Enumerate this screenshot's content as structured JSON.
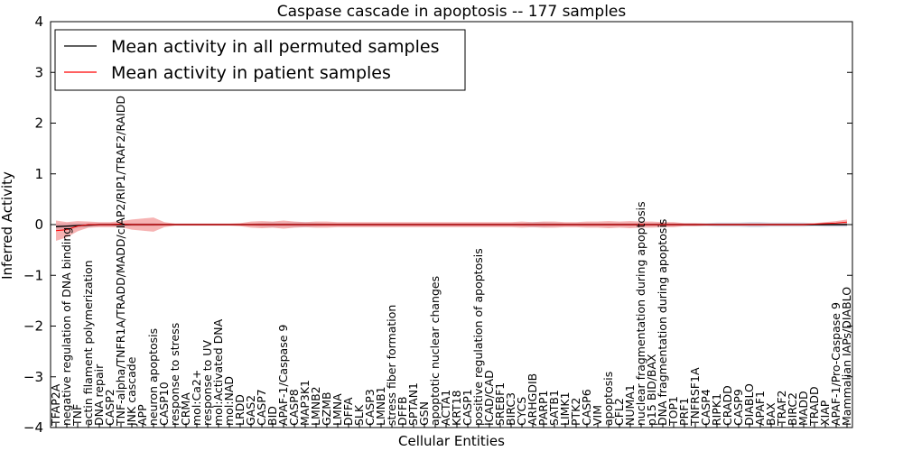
{
  "chart_data": {
    "type": "line",
    "title": "Caspase cascade in apoptosis -- 177 samples",
    "xlabel": "Cellular Entities",
    "ylabel": "Inferred Activity",
    "ylim": [
      -4,
      4
    ],
    "yticks": [
      -4,
      -3,
      -2,
      -1,
      0,
      1,
      2,
      3,
      4
    ],
    "legend_position": "top-left",
    "categories": [
      "TFAP2A",
      "negative regulation of DNA binding",
      "TNF",
      "actin filament polymerization",
      "DNA repair",
      "CASP2",
      "TNF-alpha/TNFR1A/TRADD/MADD/cIAP2/RIP1/TRAF2/RAIDD",
      "JNK cascade",
      "APP",
      "neuron apoptosis",
      "CASP10",
      "response to stress",
      "CRMA",
      "mol:Ca2+",
      "response to UV",
      "mol:Activated DNA",
      "mol:NAD",
      "LRDD",
      "GAS2",
      "CASP7",
      "BID",
      "APAF-1/Caspase 9",
      "CASP8",
      "MAP3K1",
      "LMNB2",
      "GZMB",
      "LMNA",
      "DFFA",
      "SLK",
      "CASP3",
      "LMNB1",
      "stress fiber formation",
      "DFFB",
      "SPTAN1",
      "GSN",
      "apoptotic nuclear changes",
      "ACTA1",
      "KRT18",
      "CASP1",
      "positive regulation of apoptosis",
      "ICAD/CAD",
      "SREBF1",
      "BIRC3",
      "CYCS",
      "ARHGDIB",
      "PARP1",
      "SATB1",
      "LIMK1",
      "PTK2",
      "CASP6",
      "VIM",
      "apoptosis",
      "CFL2",
      "NUMA1",
      "nuclear fragmentation during apoptosis",
      "p15 BID/BAX",
      "DNA fragmentation during apoptosis",
      "TOP1",
      "PRF1",
      "TNFRSF1A",
      "CASP4",
      "RIPK1",
      "CRADD",
      "CASP9",
      "DIABLO",
      "APAF1",
      "BAX",
      "TRAF2",
      "BIRC2",
      "MADD",
      "TRADD",
      "XIAP",
      "APAF-1/Pro-Caspase 9",
      "Mammalian IAPs/DIABLO"
    ],
    "series": [
      {
        "name": "Mean activity in all permuted samples",
        "color": "#000000",
        "band_color": "#b0b0c8",
        "values": [
          -0.04,
          -0.03,
          -0.02,
          -0.01,
          0,
          0,
          0,
          0,
          0,
          0,
          0,
          0,
          0,
          0,
          0,
          0,
          0,
          0,
          0,
          0,
          0,
          0,
          0,
          0,
          0,
          0,
          0,
          0,
          0,
          0,
          0,
          0,
          0,
          0,
          0,
          0,
          0,
          0,
          0,
          0,
          0,
          0,
          0,
          0,
          0,
          0,
          0,
          0,
          0,
          0,
          0,
          0,
          0,
          0,
          0,
          0,
          0,
          0,
          0,
          0,
          0,
          0,
          0,
          0,
          0,
          0,
          0,
          0,
          0,
          0,
          0,
          0,
          0,
          0
        ],
        "band": [
          0.06,
          0.06,
          0.05,
          0.04,
          0.03,
          0.03,
          0.03,
          0.03,
          0.03,
          0.03,
          0.02,
          0.02,
          0.02,
          0.02,
          0.02,
          0.02,
          0.02,
          0.02,
          0.02,
          0.04,
          0.05,
          0.04,
          0.05,
          0.05,
          0.04,
          0.03,
          0.03,
          0.03,
          0.03,
          0.03,
          0.03,
          0.03,
          0.03,
          0.03,
          0.03,
          0.03,
          0.03,
          0.03,
          0.03,
          0.03,
          0.03,
          0.03,
          0.03,
          0.03,
          0.05,
          0.05,
          0.04,
          0.03,
          0.03,
          0.03,
          0.03,
          0.03,
          0.03,
          0.03,
          0.03,
          0.03,
          0.03,
          0.03,
          0.03,
          0.03,
          0.03,
          0.04,
          0.04,
          0.04,
          0.05,
          0.05,
          0.04,
          0.04,
          0.04,
          0.04,
          0.03,
          0.04,
          0.04,
          0.04
        ]
      },
      {
        "name": "Mean activity in patient samples",
        "color": "#ff0000",
        "band_color": "#f08080",
        "values": [
          -0.12,
          -0.1,
          -0.03,
          0,
          0,
          0,
          0.01,
          0,
          0,
          0,
          0,
          0,
          0,
          0,
          0,
          0,
          0,
          0,
          0,
          0,
          0,
          0,
          0,
          0,
          0,
          0,
          0,
          0,
          0,
          0,
          0,
          0,
          0,
          0,
          0,
          0,
          0,
          0,
          0,
          0,
          0,
          0,
          0,
          0,
          0,
          0,
          0,
          0,
          0,
          0,
          0,
          0,
          0,
          0,
          0,
          0,
          0,
          0,
          0,
          0,
          0,
          0,
          0,
          0,
          0,
          0,
          0,
          0,
          0,
          0,
          0.01,
          0.02,
          0.03,
          0.05
        ],
        "band": [
          0.2,
          0.15,
          0.1,
          0.06,
          0.05,
          0.05,
          0.06,
          0.1,
          0.12,
          0.14,
          0.05,
          0.02,
          0.02,
          0.02,
          0.02,
          0.02,
          0.02,
          0.03,
          0.06,
          0.07,
          0.06,
          0.08,
          0.06,
          0.05,
          0.06,
          0.06,
          0.05,
          0.05,
          0.05,
          0.05,
          0.05,
          0.05,
          0.05,
          0.05,
          0.05,
          0.05,
          0.05,
          0.05,
          0.05,
          0.05,
          0.05,
          0.05,
          0.05,
          0.06,
          0.05,
          0.06,
          0.06,
          0.05,
          0.05,
          0.06,
          0.06,
          0.07,
          0.06,
          0.07,
          0.06,
          0.06,
          0.05,
          0.05,
          0.03,
          0.03,
          0.02,
          0.02,
          0.02,
          0.02,
          0.02,
          0.02,
          0.02,
          0.02,
          0.02,
          0.02,
          0.02,
          0.03,
          0.04,
          0.05
        ]
      }
    ]
  }
}
